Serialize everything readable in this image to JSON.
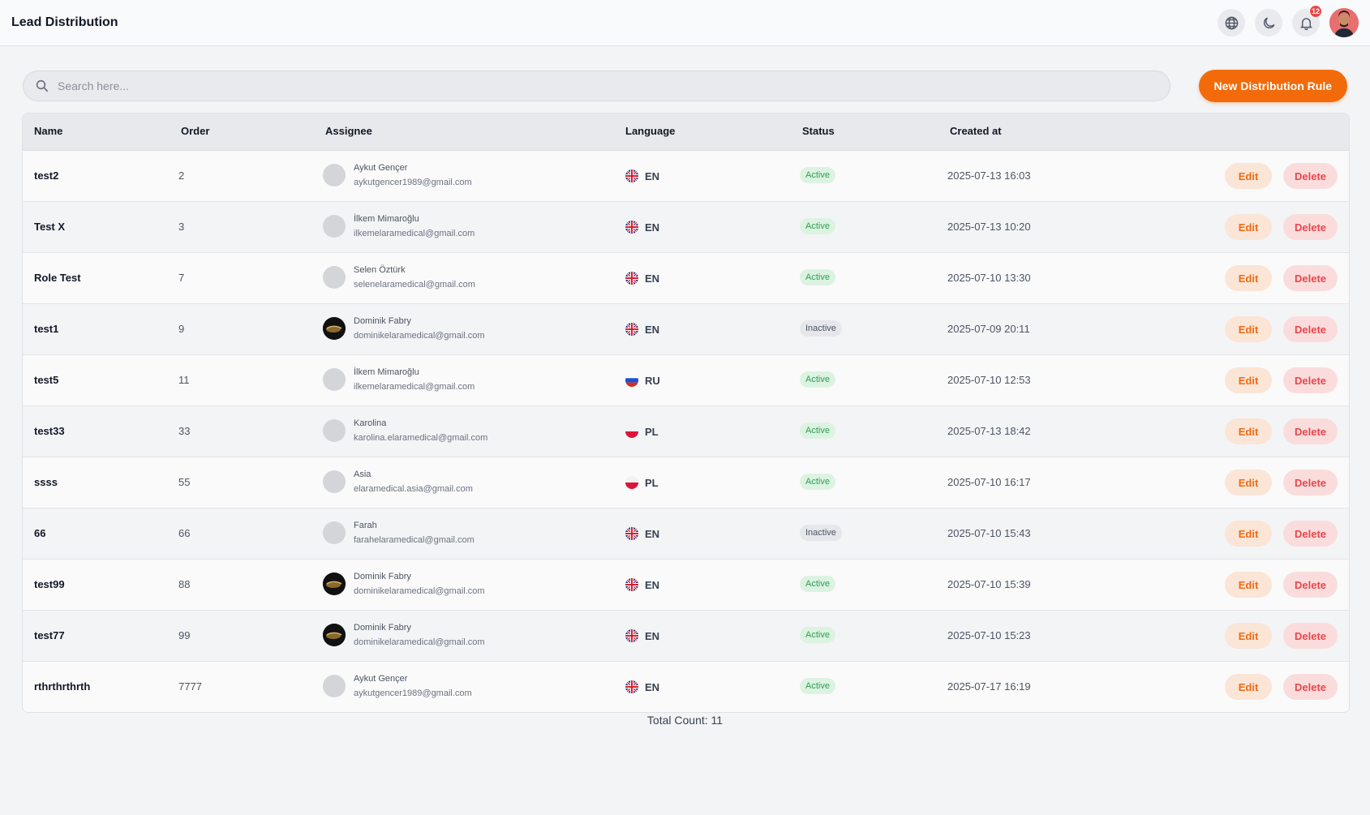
{
  "header": {
    "title": "Lead Distribution",
    "notification_count": "12"
  },
  "search": {
    "placeholder": "Search here..."
  },
  "actions": {
    "new_rule_label": "New Distribution Rule"
  },
  "table": {
    "columns": {
      "name": "Name",
      "order": "Order",
      "assignee": "Assignee",
      "language": "Language",
      "status": "Status",
      "created_at": "Created at"
    },
    "edit_label": "Edit",
    "delete_label": "Delete",
    "rows": [
      {
        "name": "test2",
        "order": "2",
        "assignee_name": "Aykut Gençer",
        "assignee_email": "aykutgencer1989@gmail.com",
        "avatar": "placeholder",
        "flag": "uk",
        "language": "EN",
        "status": "Active",
        "created": "2025-07-13 16:03"
      },
      {
        "name": "Test X",
        "order": "3",
        "assignee_name": "İlkem Mimaroğlu",
        "assignee_email": "ilkemelaramedical@gmail.com",
        "avatar": "placeholder",
        "flag": "uk",
        "language": "EN",
        "status": "Active",
        "created": "2025-07-13 10:20"
      },
      {
        "name": "Role Test",
        "order": "7",
        "assignee_name": "Selen Öztürk",
        "assignee_email": "selenelaramedical@gmail.com",
        "avatar": "placeholder",
        "flag": "uk",
        "language": "EN",
        "status": "Active",
        "created": "2025-07-10 13:30"
      },
      {
        "name": "test1",
        "order": "9",
        "assignee_name": "Dominik Fabry",
        "assignee_email": "dominikelaramedical@gmail.com",
        "avatar": "photo",
        "flag": "uk",
        "language": "EN",
        "status": "Inactive",
        "created": "2025-07-09 20:11"
      },
      {
        "name": "test5",
        "order": "11",
        "assignee_name": "İlkem Mimaroğlu",
        "assignee_email": "ilkemelaramedical@gmail.com",
        "avatar": "placeholder",
        "flag": "ru",
        "language": "RU",
        "status": "Active",
        "created": "2025-07-10 12:53"
      },
      {
        "name": "test33",
        "order": "33",
        "assignee_name": "Karolina",
        "assignee_email": "karolina.elaramedical@gmail.com",
        "avatar": "placeholder",
        "flag": "pl",
        "language": "PL",
        "status": "Active",
        "created": "2025-07-13 18:42"
      },
      {
        "name": "ssss",
        "order": "55",
        "assignee_name": "Asia",
        "assignee_email": "elaramedical.asia@gmail.com",
        "avatar": "placeholder",
        "flag": "pl",
        "language": "PL",
        "status": "Active",
        "created": "2025-07-10 16:17"
      },
      {
        "name": "66",
        "order": "66",
        "assignee_name": "Farah",
        "assignee_email": "farahelaramedical@gmail.com",
        "avatar": "placeholder",
        "flag": "uk",
        "language": "EN",
        "status": "Inactive",
        "created": "2025-07-10 15:43"
      },
      {
        "name": "test99",
        "order": "88",
        "assignee_name": "Dominik Fabry",
        "assignee_email": "dominikelaramedical@gmail.com",
        "avatar": "photo",
        "flag": "uk",
        "language": "EN",
        "status": "Active",
        "created": "2025-07-10 15:39"
      },
      {
        "name": "test77",
        "order": "99",
        "assignee_name": "Dominik Fabry",
        "assignee_email": "dominikelaramedical@gmail.com",
        "avatar": "photo",
        "flag": "uk",
        "language": "EN",
        "status": "Active",
        "created": "2025-07-10 15:23"
      },
      {
        "name": "rthrthrthrth",
        "order": "7777",
        "assignee_name": "Aykut Gençer",
        "assignee_email": "aykutgencer1989@gmail.com",
        "avatar": "placeholder",
        "flag": "uk",
        "language": "EN",
        "status": "Active",
        "created": "2025-07-17 16:19"
      }
    ]
  },
  "footer": {
    "total_count": "Total Count: 11"
  },
  "colors": {
    "accent": "#f26a0a",
    "active": "#2f9e52",
    "delete": "#e5484d"
  }
}
